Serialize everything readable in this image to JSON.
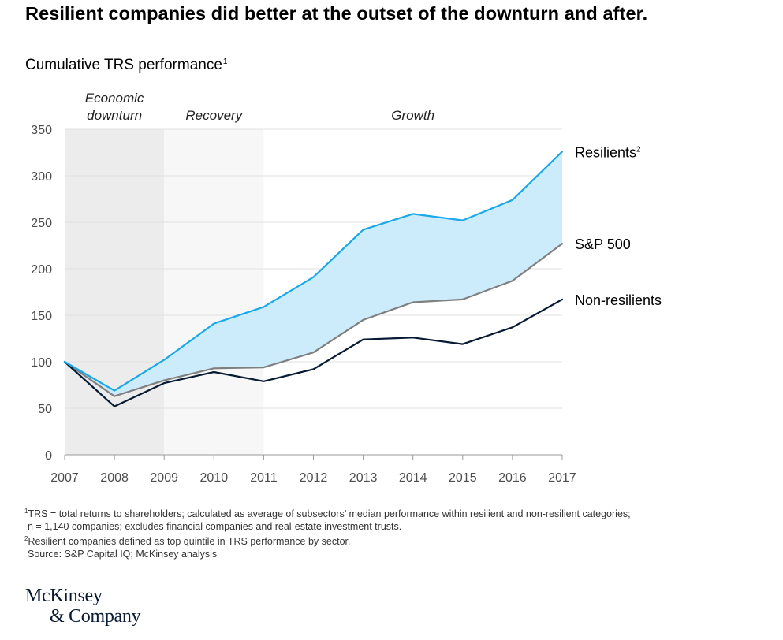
{
  "title": "Resilient companies did better at the outset of the downturn and after.",
  "subtitle": "Cumulative TRS performance",
  "subtitle_note": "1",
  "chart_data": {
    "type": "line",
    "x": [
      "2007",
      "2008",
      "2009",
      "2010",
      "2011",
      "2012",
      "2013",
      "2014",
      "2015",
      "2016",
      "2017"
    ],
    "ylim": [
      0,
      350
    ],
    "yticks": [
      0,
      50,
      100,
      150,
      200,
      250,
      300,
      350
    ],
    "grid": true,
    "phases": [
      {
        "label_lines": [
          "Economic",
          "downturn"
        ],
        "from": "2007",
        "to": "2009",
        "color": "#ececec"
      },
      {
        "label_lines": [
          "Recovery"
        ],
        "from": "2009",
        "to": "2011",
        "color": "#f7f7f7"
      },
      {
        "label_lines": [
          "Growth"
        ],
        "from": "2011",
        "to": "2017",
        "color": "#ffffff"
      }
    ],
    "fill_between": {
      "upper": "Resilients",
      "lower": "S&P 500",
      "color": "#cdecfb"
    },
    "series": [
      {
        "name": "Resilients",
        "note": "2",
        "color": "#1ba8e8",
        "values": [
          100,
          69,
          102,
          141,
          159,
          191,
          242,
          259,
          252,
          274,
          326
        ]
      },
      {
        "name": "S&P 500",
        "note": "",
        "color": "#7f7f7f",
        "values": [
          100,
          63,
          80,
          93,
          94,
          110,
          145,
          164,
          167,
          187,
          227
        ]
      },
      {
        "name": "Non-resilients",
        "note": "",
        "color": "#061a33",
        "values": [
          100,
          52,
          77,
          89,
          79,
          92,
          124,
          126,
          119,
          137,
          167
        ]
      }
    ]
  },
  "footnotes": {
    "line1_mark": "1",
    "line1": "TRS = total returns to shareholders; calculated as average of subsectors’ median performance within resilient and non-resilient categories;",
    "line2": "n = 1,140 companies; excludes financial companies and real-estate investment trusts.",
    "line3_mark": "2",
    "line3": "Resilient companies defined as top quintile in TRS performance by sector.",
    "source": "Source: S&P Capital IQ; McKinsey analysis"
  },
  "logo": {
    "line1": "McKinsey",
    "line2": "& Company"
  }
}
